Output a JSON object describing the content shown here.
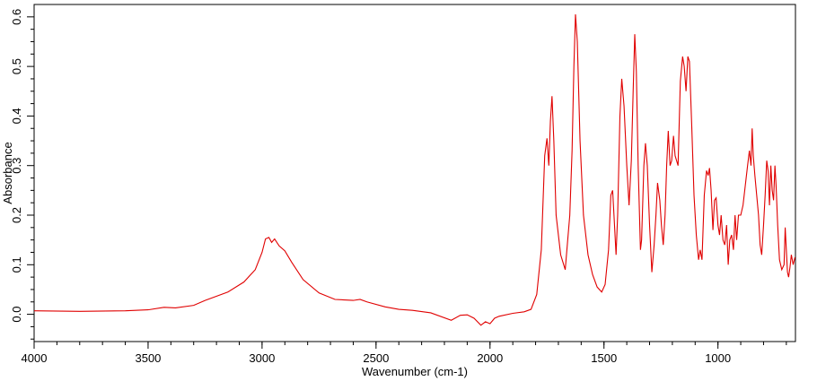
{
  "chart_data": {
    "type": "line",
    "title": "",
    "xlabel": "Wavenumber (cm-1)",
    "ylabel": "Absorbance",
    "xlim": [
      4000,
      660
    ],
    "ylim": [
      -0.055,
      0.625
    ],
    "x_reversed": true,
    "grid": false,
    "legend": "none",
    "x_ticks": [
      4000,
      3500,
      3000,
      2500,
      2000,
      1500,
      1000
    ],
    "y_ticks": [
      0.0,
      0.1,
      0.2,
      0.3,
      0.4,
      0.5,
      0.6
    ],
    "x_tick_labels": [
      "4000",
      "3500",
      "3000",
      "2500",
      "2000",
      "1500",
      "1000"
    ],
    "y_tick_labels": [
      "0.0",
      "0.1",
      "0.2",
      "0.3",
      "0.4",
      "0.5",
      "0.6"
    ],
    "series": [
      {
        "color": "#e00000",
        "points": [
          [
            4000,
            0.007
          ],
          [
            3800,
            0.006
          ],
          [
            3600,
            0.007
          ],
          [
            3500,
            0.009
          ],
          [
            3430,
            0.014
          ],
          [
            3380,
            0.013
          ],
          [
            3300,
            0.018
          ],
          [
            3250,
            0.028
          ],
          [
            3150,
            0.045
          ],
          [
            3080,
            0.065
          ],
          [
            3030,
            0.09
          ],
          [
            3000,
            0.125
          ],
          [
            2985,
            0.152
          ],
          [
            2970,
            0.155
          ],
          [
            2958,
            0.145
          ],
          [
            2945,
            0.152
          ],
          [
            2925,
            0.138
          ],
          [
            2900,
            0.128
          ],
          [
            2870,
            0.105
          ],
          [
            2820,
            0.07
          ],
          [
            2750,
            0.043
          ],
          [
            2680,
            0.03
          ],
          [
            2600,
            0.028
          ],
          [
            2570,
            0.03
          ],
          [
            2540,
            0.025
          ],
          [
            2460,
            0.015
          ],
          [
            2400,
            0.01
          ],
          [
            2340,
            0.008
          ],
          [
            2260,
            0.003
          ],
          [
            2170,
            -0.012
          ],
          [
            2130,
            -0.002
          ],
          [
            2100,
            -0.001
          ],
          [
            2070,
            -0.008
          ],
          [
            2040,
            -0.022
          ],
          [
            2020,
            -0.015
          ],
          [
            2000,
            -0.019
          ],
          [
            1980,
            -0.008
          ],
          [
            1960,
            -0.004
          ],
          [
            1900,
            0.002
          ],
          [
            1850,
            0.005
          ],
          [
            1820,
            0.01
          ],
          [
            1795,
            0.04
          ],
          [
            1775,
            0.13
          ],
          [
            1760,
            0.32
          ],
          [
            1750,
            0.355
          ],
          [
            1742,
            0.3
          ],
          [
            1735,
            0.39
          ],
          [
            1728,
            0.44
          ],
          [
            1720,
            0.35
          ],
          [
            1710,
            0.2
          ],
          [
            1690,
            0.12
          ],
          [
            1670,
            0.09
          ],
          [
            1650,
            0.2
          ],
          [
            1640,
            0.33
          ],
          [
            1632,
            0.5
          ],
          [
            1625,
            0.605
          ],
          [
            1617,
            0.55
          ],
          [
            1605,
            0.35
          ],
          [
            1590,
            0.2
          ],
          [
            1570,
            0.12
          ],
          [
            1550,
            0.08
          ],
          [
            1530,
            0.055
          ],
          [
            1510,
            0.045
          ],
          [
            1495,
            0.06
          ],
          [
            1480,
            0.13
          ],
          [
            1470,
            0.24
          ],
          [
            1462,
            0.25
          ],
          [
            1455,
            0.19
          ],
          [
            1447,
            0.12
          ],
          [
            1440,
            0.2
          ],
          [
            1430,
            0.4
          ],
          [
            1422,
            0.475
          ],
          [
            1412,
            0.42
          ],
          [
            1400,
            0.3
          ],
          [
            1390,
            0.22
          ],
          [
            1380,
            0.31
          ],
          [
            1372,
            0.45
          ],
          [
            1365,
            0.565
          ],
          [
            1358,
            0.49
          ],
          [
            1350,
            0.3
          ],
          [
            1340,
            0.13
          ],
          [
            1335,
            0.15
          ],
          [
            1325,
            0.3
          ],
          [
            1318,
            0.345
          ],
          [
            1310,
            0.3
          ],
          [
            1300,
            0.18
          ],
          [
            1290,
            0.085
          ],
          [
            1280,
            0.14
          ],
          [
            1272,
            0.2
          ],
          [
            1265,
            0.265
          ],
          [
            1255,
            0.23
          ],
          [
            1248,
            0.18
          ],
          [
            1240,
            0.14
          ],
          [
            1232,
            0.2
          ],
          [
            1225,
            0.3
          ],
          [
            1218,
            0.37
          ],
          [
            1210,
            0.3
          ],
          [
            1203,
            0.31
          ],
          [
            1195,
            0.36
          ],
          [
            1188,
            0.32
          ],
          [
            1175,
            0.3
          ],
          [
            1165,
            0.47
          ],
          [
            1155,
            0.52
          ],
          [
            1148,
            0.5
          ],
          [
            1140,
            0.45
          ],
          [
            1132,
            0.52
          ],
          [
            1125,
            0.51
          ],
          [
            1115,
            0.38
          ],
          [
            1105,
            0.24
          ],
          [
            1095,
            0.16
          ],
          [
            1085,
            0.11
          ],
          [
            1078,
            0.13
          ],
          [
            1070,
            0.11
          ],
          [
            1060,
            0.24
          ],
          [
            1050,
            0.29
          ],
          [
            1043,
            0.28
          ],
          [
            1037,
            0.295
          ],
          [
            1030,
            0.25
          ],
          [
            1022,
            0.17
          ],
          [
            1015,
            0.23
          ],
          [
            1008,
            0.235
          ],
          [
            1000,
            0.18
          ],
          [
            993,
            0.16
          ],
          [
            986,
            0.2
          ],
          [
            978,
            0.15
          ],
          [
            970,
            0.14
          ],
          [
            962,
            0.18
          ],
          [
            955,
            0.1
          ],
          [
            948,
            0.15
          ],
          [
            940,
            0.16
          ],
          [
            932,
            0.13
          ],
          [
            925,
            0.2
          ],
          [
            918,
            0.15
          ],
          [
            910,
            0.2
          ],
          [
            900,
            0.2
          ],
          [
            890,
            0.22
          ],
          [
            880,
            0.26
          ],
          [
            870,
            0.3
          ],
          [
            862,
            0.33
          ],
          [
            855,
            0.3
          ],
          [
            850,
            0.375
          ],
          [
            845,
            0.32
          ],
          [
            838,
            0.28
          ],
          [
            830,
            0.24
          ],
          [
            822,
            0.2
          ],
          [
            815,
            0.14
          ],
          [
            808,
            0.12
          ],
          [
            800,
            0.18
          ],
          [
            793,
            0.24
          ],
          [
            786,
            0.31
          ],
          [
            780,
            0.29
          ],
          [
            774,
            0.22
          ],
          [
            768,
            0.3
          ],
          [
            762,
            0.25
          ],
          [
            756,
            0.23
          ],
          [
            750,
            0.3
          ],
          [
            745,
            0.26
          ],
          [
            738,
            0.18
          ],
          [
            730,
            0.11
          ],
          [
            720,
            0.09
          ],
          [
            710,
            0.1
          ],
          [
            705,
            0.175
          ],
          [
            700,
            0.13
          ],
          [
            695,
            0.085
          ],
          [
            690,
            0.075
          ],
          [
            684,
            0.095
          ],
          [
            678,
            0.12
          ],
          [
            670,
            0.1
          ],
          [
            662,
            0.115
          ]
        ]
      }
    ]
  }
}
